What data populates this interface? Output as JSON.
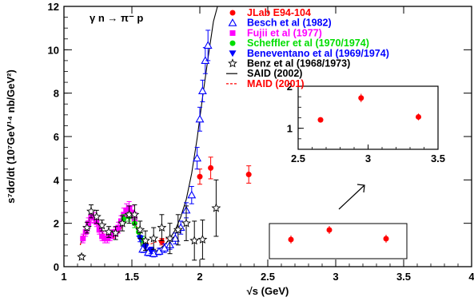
{
  "chart_data": {
    "type": "scatter",
    "title": "",
    "annotation": "γ n → π⁻ p",
    "xlabel": "√s (GeV)",
    "ylabel": "s⁷dσ/dt (10⁷GeV¹⁴ nb/GeV²)",
    "xlim": [
      1,
      4
    ],
    "ylim": [
      0,
      12
    ],
    "x_ticks": [
      "1",
      "1.5",
      "2",
      "2.5",
      "3",
      "3.5",
      "4"
    ],
    "y_ticks": [
      "0",
      "2",
      "4",
      "6",
      "8",
      "10",
      "12"
    ],
    "grid": false,
    "legend_placement": "top-right",
    "colors": {
      "jlab": "#ff0000",
      "besch": "#0000ff",
      "fujii": "#ff00ff",
      "scheffler": "#00dd00",
      "beneventano": "#0000ff",
      "benz": "#000000",
      "said": "#000000",
      "maid": "#ff0000"
    },
    "legend": [
      {
        "key": "jlab",
        "label": "JLab E94-104",
        "marker": "filled-circle"
      },
      {
        "key": "besch",
        "label": "Besch et al (1982)",
        "marker": "open-triangle"
      },
      {
        "key": "fujii",
        "label": "Fujii et al (1977)",
        "marker": "filled-square"
      },
      {
        "key": "scheffler",
        "label": "Scheffler et al (1970/1974)",
        "marker": "filled-circle"
      },
      {
        "key": "beneventano",
        "label": "Beneventano et al (1969/1974)",
        "marker": "filled-down-triangle"
      },
      {
        "key": "benz",
        "label": "Benz et al (1968/1973)",
        "marker": "open-star"
      },
      {
        "key": "said",
        "label": "SAID (2002)",
        "marker": "solid-line"
      },
      {
        "key": "maid",
        "label": "MAID (2001)",
        "marker": "dashed-line"
      }
    ],
    "series": [
      {
        "key": "jlab",
        "name": "JLab E94-104",
        "x": [
          1.72,
          2.0,
          2.08,
          2.36
        ],
        "y": [
          1.15,
          4.15,
          4.55,
          4.25
        ],
        "err": [
          0.15,
          0.35,
          0.5,
          0.4
        ]
      },
      {
        "key": "besch",
        "name": "Besch et al (1982)",
        "x": [
          1.58,
          1.62,
          1.66,
          1.7,
          1.74,
          1.78,
          1.82,
          1.86,
          1.9,
          1.94,
          1.98,
          2.0,
          2.02,
          2.04,
          2.06
        ],
        "y": [
          0.8,
          0.65,
          0.6,
          0.7,
          0.85,
          1.0,
          1.3,
          1.8,
          2.6,
          3.3,
          5.0,
          6.8,
          8.1,
          9.5,
          10.2
        ],
        "err": [
          0.15,
          0.15,
          0.15,
          0.15,
          0.2,
          0.2,
          0.25,
          0.3,
          0.35,
          0.4,
          0.5,
          0.55,
          0.5,
          0.6,
          0.7
        ]
      },
      {
        "key": "fujii",
        "name": "Fujii et al (1977)",
        "x": [
          1.14,
          1.16,
          1.18,
          1.2,
          1.22,
          1.24,
          1.26,
          1.28,
          1.3,
          1.32,
          1.34,
          1.36,
          1.38,
          1.4,
          1.42,
          1.44,
          1.46,
          1.48,
          1.5,
          1.52
        ],
        "y": [
          1.3,
          1.6,
          2.0,
          2.3,
          2.25,
          2.05,
          1.7,
          1.4,
          1.3,
          1.3,
          1.4,
          1.5,
          1.6,
          1.8,
          2.1,
          2.4,
          2.6,
          2.7,
          2.5,
          2.2
        ],
        "err": [
          0.2,
          0.2,
          0.25,
          0.25,
          0.25,
          0.2,
          0.2,
          0.2,
          0.2,
          0.2,
          0.2,
          0.2,
          0.2,
          0.25,
          0.25,
          0.3,
          0.3,
          0.3,
          0.3,
          0.3
        ]
      },
      {
        "key": "scheffler",
        "name": "Scheffler et al (1970/1974)",
        "x": [
          1.44,
          1.48,
          1.52,
          1.55,
          1.58
        ],
        "y": [
          2.2,
          2.3,
          2.0,
          1.6,
          1.2
        ],
        "err": [
          0.2,
          0.2,
          0.2,
          0.2,
          0.2
        ]
      },
      {
        "key": "beneventano",
        "name": "Beneventano et al (1969/1974)",
        "x": [
          1.56,
          1.6,
          1.64
        ],
        "y": [
          1.3,
          0.9,
          0.75
        ],
        "err": [
          0.15,
          0.15,
          0.15
        ]
      },
      {
        "key": "benz",
        "name": "Benz et al (1968/1973)",
        "x": [
          1.13,
          1.17,
          1.2,
          1.24,
          1.28,
          1.33,
          1.38,
          1.43,
          1.48,
          1.52,
          1.56,
          1.6,
          1.66,
          1.72,
          1.78,
          1.84,
          1.9,
          1.96,
          2.02,
          2.12
        ],
        "y": [
          0.45,
          1.8,
          2.55,
          2.3,
          1.9,
          1.6,
          1.55,
          2.0,
          2.4,
          2.4,
          1.7,
          1.2,
          1.3,
          1.8,
          1.3,
          1.7,
          2.0,
          1.2,
          1.25,
          2.7
        ],
        "err": [
          0.1,
          0.25,
          0.3,
          0.3,
          0.25,
          0.25,
          0.3,
          0.35,
          0.4,
          0.45,
          0.4,
          0.45,
          0.5,
          0.6,
          0.7,
          0.7,
          0.8,
          0.9,
          0.9,
          1.3
        ]
      }
    ],
    "curves": [
      {
        "key": "said",
        "name": "SAID (2002)",
        "style": "solid",
        "x": [
          1.12,
          1.15,
          1.18,
          1.21,
          1.24,
          1.27,
          1.3,
          1.33,
          1.36,
          1.39,
          1.42,
          1.45,
          1.48,
          1.51,
          1.54,
          1.57,
          1.6,
          1.63,
          1.66,
          1.7,
          1.74,
          1.78,
          1.82,
          1.86,
          1.9,
          1.94,
          1.98,
          2.02,
          2.06,
          2.1,
          2.13
        ],
        "y": [
          1.0,
          1.6,
          2.1,
          2.3,
          2.1,
          1.7,
          1.4,
          1.3,
          1.35,
          1.5,
          1.8,
          2.2,
          2.6,
          2.4,
          1.6,
          1.0,
          0.7,
          0.6,
          0.65,
          0.8,
          1.0,
          1.3,
          1.7,
          2.3,
          3.1,
          4.3,
          5.9,
          7.8,
          9.6,
          11.3,
          12.0
        ]
      },
      {
        "key": "maid",
        "name": "MAID (2001)",
        "style": "dashed",
        "x": [
          1.12,
          1.16,
          1.2,
          1.24,
          1.28,
          1.32,
          1.36,
          1.4,
          1.44,
          1.48,
          1.52,
          1.56,
          1.6,
          1.64,
          1.68,
          1.72,
          1.76
        ],
        "y": [
          1.0,
          1.7,
          2.2,
          2.1,
          1.6,
          1.3,
          1.3,
          1.5,
          2.0,
          2.5,
          2.2,
          1.4,
          1.1,
          1.05,
          1.15,
          1.25,
          1.3
        ]
      }
    ],
    "inset": {
      "xlim": [
        2.5,
        3.5
      ],
      "ylim": [
        0.5,
        2.0
      ],
      "x_ticks": [
        "2.5",
        "3",
        "3.5"
      ],
      "y_ticks": [
        "1",
        "2"
      ],
      "points": {
        "x": [
          2.66,
          2.95,
          3.36
        ],
        "y": [
          1.2,
          1.72,
          1.27
        ],
        "err": [
          0.05,
          0.1,
          0.08
        ]
      }
    }
  }
}
